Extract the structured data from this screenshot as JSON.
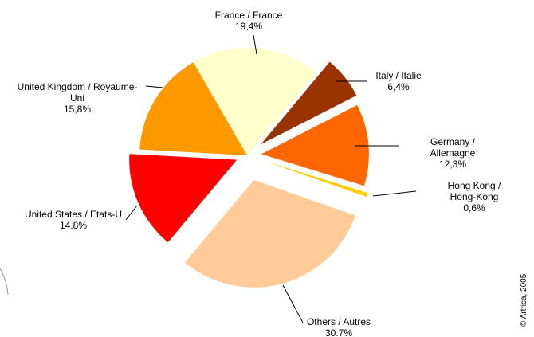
{
  "chart_data": {
    "type": "pie",
    "categories": [
      "France / France",
      "Italy / Italie",
      "Germany / Allemagne",
      "Hong Kong / Hong-Kong",
      "Others / Autres",
      "United States / Etats-U",
      "United Kingdom / Royaume-Uni"
    ],
    "values": [
      19.4,
      6.4,
      12.3,
      0.6,
      30.7,
      14.8,
      15.8
    ],
    "value_labels": [
      "19,4%",
      "6,4%",
      "12,3%",
      "0,6%",
      "30.7%",
      "14,8%",
      "15,8%"
    ],
    "colors": [
      "#ffffcc",
      "#993300",
      "#ff6600",
      "#ffcc00",
      "#ffcc99",
      "#ff0000",
      "#ff9900"
    ],
    "source": "© Artrica, 2005"
  }
}
